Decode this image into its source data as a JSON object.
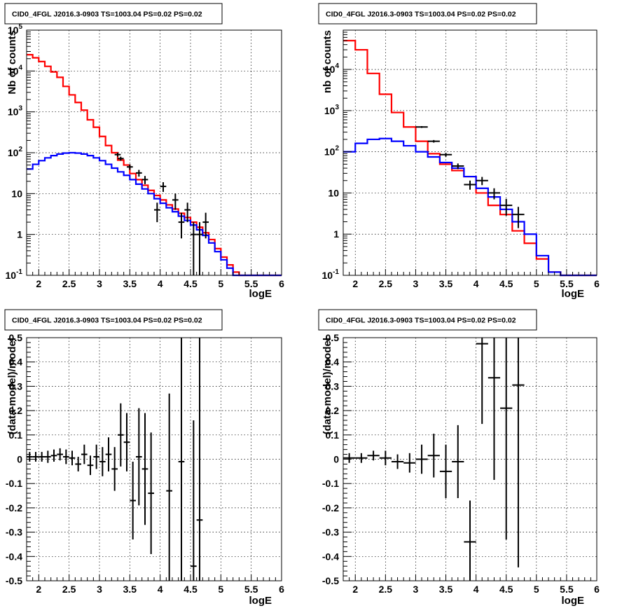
{
  "chart_data": [
    {
      "type": "line",
      "title": "CID0_4FGL J2016.3-0903 TS=1003.04 PS=0.02 PS=0.02",
      "xlabel": "logE",
      "ylabel": "Nb of counts",
      "log_y": true,
      "xlim": [
        1.8,
        6.0
      ],
      "ylim": [
        0.1,
        100000
      ],
      "grid": true,
      "x_ticks": [
        "2",
        "2.5",
        "3",
        "3.5",
        "4",
        "4.5",
        "5",
        "5.5",
        "6"
      ],
      "y_ticks": [
        "10^{-1}",
        "1",
        "10",
        "10^{2}",
        "10^{3}",
        "10^{4}",
        "10^{5}"
      ],
      "series": [
        {
          "color": "#ff0000",
          "bin_edges": [
            1.8,
            1.9,
            2.0,
            2.1,
            2.2,
            2.3,
            2.4,
            2.5,
            2.6,
            2.7,
            2.8,
            2.9,
            3.0,
            3.1,
            3.2,
            3.3,
            3.4,
            3.5,
            3.6,
            3.7,
            3.8,
            3.9,
            4.0,
            4.1,
            4.2,
            4.3,
            4.4,
            4.5,
            4.6,
            4.7,
            4.8,
            4.9,
            5.0,
            5.1,
            5.2,
            5.3,
            5.4,
            5.5,
            5.6,
            5.7,
            5.8,
            5.9,
            6.0
          ],
          "values": [
            25000,
            21000,
            17000,
            13000,
            9500,
            7000,
            4200,
            2600,
            1700,
            1100,
            640,
            420,
            250,
            150,
            100,
            66,
            50,
            31,
            22,
            16,
            12,
            9,
            7,
            5.3,
            4.2,
            3.3,
            2.6,
            2.0,
            1.5,
            1.1,
            0.75,
            0.45,
            0.28,
            0.18,
            0.12,
            0.1,
            0.1,
            0.1,
            0.1,
            0.1,
            0.1,
            0.1
          ]
        },
        {
          "color": "#0000ff",
          "bin_edges": [
            1.8,
            1.9,
            2.0,
            2.1,
            2.2,
            2.3,
            2.4,
            2.5,
            2.6,
            2.7,
            2.8,
            2.9,
            3.0,
            3.1,
            3.2,
            3.3,
            3.4,
            3.5,
            3.6,
            3.7,
            3.8,
            3.9,
            4.0,
            4.1,
            4.2,
            4.3,
            4.4,
            4.5,
            4.6,
            4.7,
            4.8,
            4.9,
            5.0,
            5.1,
            5.2,
            5.3,
            5.4,
            5.5,
            5.6,
            5.7,
            5.8,
            5.9,
            6.0
          ],
          "values": [
            40,
            52,
            64,
            75,
            85,
            93,
            98,
            100,
            98,
            93,
            85,
            75,
            64,
            52,
            42,
            34,
            28,
            22,
            17,
            13,
            10,
            7.5,
            5.8,
            4.5,
            3.6,
            2.8,
            2.2,
            1.7,
            1.3,
            0.95,
            0.62,
            0.38,
            0.24,
            0.15,
            0.1,
            0.1,
            0.1,
            0.1,
            0.1,
            0.1,
            0.1,
            0.1
          ]
        }
      ],
      "points": [
        {
          "x": 3.3,
          "y": 90,
          "yerr": [
            10,
            10
          ],
          "xerr": 0.05
        },
        {
          "x": 3.35,
          "y": 72,
          "yerr": [
            8,
            8
          ],
          "xerr": 0.05
        },
        {
          "x": 3.5,
          "y": 45,
          "yerr": [
            7,
            7
          ],
          "xerr": 0.05
        },
        {
          "x": 3.65,
          "y": 32,
          "yerr": [
            6,
            6
          ],
          "xerr": 0.05
        },
        {
          "x": 3.75,
          "y": 22,
          "yerr": [
            5,
            5
          ],
          "xerr": 0.05
        },
        {
          "x": 3.95,
          "y": 4,
          "yerr": [
            2,
            2
          ],
          "xerr": 0.05
        },
        {
          "x": 4.05,
          "y": 15,
          "yerr": [
            4,
            4
          ],
          "xerr": 0.05
        },
        {
          "x": 4.25,
          "y": 7,
          "yerr": [
            3,
            3
          ],
          "xerr": 0.05
        },
        {
          "x": 4.35,
          "y": 2,
          "yerr": [
            1.2,
            1.4
          ],
          "xerr": 0.05
        },
        {
          "x": 4.45,
          "y": 4,
          "yerr": [
            2,
            2
          ],
          "xerr": 0.05
        },
        {
          "x": 4.55,
          "y": 1,
          "yerr": [
            0.95,
            1.0
          ],
          "xerr": 0.05
        },
        {
          "x": 4.65,
          "y": 1,
          "yerr": [
            0.95,
            1.0
          ],
          "xerr": 0.05
        },
        {
          "x": 4.75,
          "y": 2,
          "yerr": [
            1.2,
            1.4
          ],
          "xerr": 0.05
        }
      ]
    },
    {
      "type": "line",
      "title": "CID0_4FGL J2016.3-0903 TS=1003.04 PS=0.02 PS=0.02",
      "xlabel": "logE",
      "ylabel": "nb of counts",
      "log_y": true,
      "xlim": [
        1.8,
        6.0
      ],
      "ylim": [
        0.1,
        90000
      ],
      "grid": true,
      "x_ticks": [
        "2",
        "2.5",
        "3",
        "3.5",
        "4",
        "4.5",
        "5",
        "5.5",
        "6"
      ],
      "y_ticks": [
        "10^{-1}",
        "1",
        "10",
        "10^{2}",
        "10^{3}",
        "10^{4}"
      ],
      "series": [
        {
          "color": "#ff0000",
          "bin_edges": [
            1.8,
            2.0,
            2.2,
            2.4,
            2.6,
            2.8,
            3.0,
            3.2,
            3.4,
            3.6,
            3.8,
            4.0,
            4.2,
            4.4,
            4.6,
            4.8,
            5.0,
            5.2,
            5.4,
            5.6,
            5.8,
            6.0
          ],
          "values": [
            50000,
            30000,
            8000,
            2500,
            900,
            400,
            180,
            90,
            50,
            35,
            25,
            10,
            5,
            3,
            1.2,
            0.6,
            0.25,
            0.12,
            0.1,
            0.1,
            0.1
          ]
        },
        {
          "color": "#0000ff",
          "bin_edges": [
            1.8,
            2.0,
            2.2,
            2.4,
            2.6,
            2.8,
            3.0,
            3.2,
            3.4,
            3.6,
            3.8,
            4.0,
            4.2,
            4.4,
            4.6,
            4.8,
            5.0,
            5.2,
            5.4,
            5.6,
            5.8,
            6.0
          ],
          "values": [
            100,
            160,
            200,
            210,
            180,
            140,
            100,
            75,
            55,
            40,
            25,
            13,
            8,
            4,
            2,
            1,
            0.3,
            0.12,
            0.1,
            0.1,
            0.1
          ]
        }
      ],
      "points": [
        {
          "x": 3.1,
          "y": 400,
          "yerr": [
            20,
            20
          ],
          "xerr": 0.1
        },
        {
          "x": 3.3,
          "y": 180,
          "yerr": [
            13,
            13
          ],
          "xerr": 0.1
        },
        {
          "x": 3.5,
          "y": 85,
          "yerr": [
            9,
            9
          ],
          "xerr": 0.1
        },
        {
          "x": 3.7,
          "y": 45,
          "yerr": [
            7,
            7
          ],
          "xerr": 0.1
        },
        {
          "x": 3.9,
          "y": 16,
          "yerr": [
            4,
            4
          ],
          "xerr": 0.1
        },
        {
          "x": 4.1,
          "y": 20,
          "yerr": [
            4.5,
            4.5
          ],
          "xerr": 0.1
        },
        {
          "x": 4.3,
          "y": 10,
          "yerr": [
            3,
            3
          ],
          "xerr": 0.1
        },
        {
          "x": 4.5,
          "y": 5,
          "yerr": [
            2.2,
            2.2
          ],
          "xerr": 0.1
        },
        {
          "x": 4.7,
          "y": 3,
          "yerr": [
            1.6,
            1.6
          ],
          "xerr": 0.1
        }
      ]
    },
    {
      "type": "scatter",
      "title": "CID0_4FGL J2016.3-0903 TS=1003.04 PS=0.02 PS=0.02",
      "xlabel": "logE",
      "ylabel": "(data-model)/model",
      "xlim": [
        1.8,
        6.0
      ],
      "ylim": [
        -0.5,
        0.5
      ],
      "grid": true,
      "x_ticks": [
        "2",
        "2.5",
        "3",
        "3.5",
        "4",
        "4.5",
        "5",
        "5.5",
        "6"
      ],
      "y_ticks": [
        "-0.5",
        "-0.4",
        "-0.3",
        "-0.2",
        "-0.1",
        "0",
        "0.1",
        "0.2",
        "0.3",
        "0.4",
        "0.5"
      ],
      "points": [
        {
          "x": 1.85,
          "y": 0.01,
          "yerr": [
            0.02,
            0.02
          ],
          "xerr": 0.05
        },
        {
          "x": 1.95,
          "y": 0.01,
          "yerr": [
            0.02,
            0.02
          ],
          "xerr": 0.05
        },
        {
          "x": 2.05,
          "y": 0.01,
          "yerr": [
            0.02,
            0.02
          ],
          "xerr": 0.05
        },
        {
          "x": 2.15,
          "y": 0.01,
          "yerr": [
            0.025,
            0.025
          ],
          "xerr": 0.05
        },
        {
          "x": 2.25,
          "y": 0.015,
          "yerr": [
            0.025,
            0.025
          ],
          "xerr": 0.05
        },
        {
          "x": 2.35,
          "y": 0.02,
          "yerr": [
            0.025,
            0.025
          ],
          "xerr": 0.05
        },
        {
          "x": 2.45,
          "y": 0.01,
          "yerr": [
            0.03,
            0.03
          ],
          "xerr": 0.05
        },
        {
          "x": 2.55,
          "y": 0.005,
          "yerr": [
            0.03,
            0.03
          ],
          "xerr": 0.05
        },
        {
          "x": 2.65,
          "y": -0.02,
          "yerr": [
            0.03,
            0.03
          ],
          "xerr": 0.05
        },
        {
          "x": 2.75,
          "y": 0.02,
          "yerr": [
            0.04,
            0.04
          ],
          "xerr": 0.05
        },
        {
          "x": 2.85,
          "y": -0.025,
          "yerr": [
            0.04,
            0.04
          ],
          "xerr": 0.05
        },
        {
          "x": 2.95,
          "y": 0.01,
          "yerr": [
            0.05,
            0.05
          ],
          "xerr": 0.05
        },
        {
          "x": 3.05,
          "y": -0.01,
          "yerr": [
            0.06,
            0.06
          ],
          "xerr": 0.05
        },
        {
          "x": 3.15,
          "y": 0.02,
          "yerr": [
            0.07,
            0.07
          ],
          "xerr": 0.05
        },
        {
          "x": 3.25,
          "y": -0.04,
          "yerr": [
            0.09,
            0.09
          ],
          "xerr": 0.05
        },
        {
          "x": 3.35,
          "y": 0.1,
          "yerr": [
            0.13,
            0.13
          ],
          "xerr": 0.05
        },
        {
          "x": 3.45,
          "y": 0.07,
          "yerr": [
            0.12,
            0.12
          ],
          "xerr": 0.05
        },
        {
          "x": 3.55,
          "y": -0.17,
          "yerr": [
            0.16,
            0.16
          ],
          "xerr": 0.05
        },
        {
          "x": 3.65,
          "y": 0.01,
          "yerr": [
            0.2,
            0.2
          ],
          "xerr": 0.05
        },
        {
          "x": 3.75,
          "y": -0.04,
          "yerr": [
            0.23,
            0.23
          ],
          "xerr": 0.05
        },
        {
          "x": 3.85,
          "y": -0.14,
          "yerr": [
            0.25,
            0.25
          ],
          "xerr": 0.05
        },
        {
          "x": 4.15,
          "y": -0.13,
          "yerr": [
            0.4,
            0.4
          ],
          "xerr": 0.05
        },
        {
          "x": 4.35,
          "y": -0.01,
          "yerr": [
            0.55,
            0.55
          ],
          "xerr": 0.05
        },
        {
          "x": 4.55,
          "y": -0.44,
          "yerr": [
            0.6,
            0.6
          ],
          "xerr": 0.05
        },
        {
          "x": 4.65,
          "y": -0.25,
          "yerr": [
            0.8,
            0.8
          ],
          "xerr": 0.05
        }
      ]
    },
    {
      "type": "scatter",
      "title": "CID0_4FGL J2016.3-0903 TS=1003.04 PS=0.02 PS=0.02",
      "xlabel": "logE",
      "ylabel": "(data-model)/model",
      "xlim": [
        1.8,
        6.0
      ],
      "ylim": [
        -0.5,
        0.5
      ],
      "grid": true,
      "x_ticks": [
        "2",
        "2.5",
        "3",
        "3.5",
        "4",
        "4.5",
        "5",
        "5.5",
        "6"
      ],
      "y_ticks": [
        "-0.5",
        "-0.4",
        "-0.3",
        "-0.2",
        "-0.1",
        "0",
        "0.1",
        "0.2",
        "0.3",
        "0.4",
        "0.5"
      ],
      "points": [
        {
          "x": 1.9,
          "y": 0.005,
          "yerr": [
            0.02,
            0.02
          ],
          "xerr": 0.1
        },
        {
          "x": 2.1,
          "y": 0.005,
          "yerr": [
            0.02,
            0.02
          ],
          "xerr": 0.1
        },
        {
          "x": 2.3,
          "y": 0.015,
          "yerr": [
            0.02,
            0.02
          ],
          "xerr": 0.1
        },
        {
          "x": 2.5,
          "y": 0.005,
          "yerr": [
            0.03,
            0.03
          ],
          "xerr": 0.1
        },
        {
          "x": 2.7,
          "y": -0.01,
          "yerr": [
            0.03,
            0.03
          ],
          "xerr": 0.1
        },
        {
          "x": 2.9,
          "y": -0.015,
          "yerr": [
            0.04,
            0.04
          ],
          "xerr": 0.1
        },
        {
          "x": 3.1,
          "y": 0.0,
          "yerr": [
            0.06,
            0.06
          ],
          "xerr": 0.1
        },
        {
          "x": 3.3,
          "y": 0.015,
          "yerr": [
            0.09,
            0.09
          ],
          "xerr": 0.1
        },
        {
          "x": 3.5,
          "y": -0.05,
          "yerr": [
            0.11,
            0.11
          ],
          "xerr": 0.1
        },
        {
          "x": 3.7,
          "y": -0.01,
          "yerr": [
            0.15,
            0.15
          ],
          "xerr": 0.1
        },
        {
          "x": 3.9,
          "y": -0.34,
          "yerr": [
            0.17,
            0.17
          ],
          "xerr": 0.1
        },
        {
          "x": 4.1,
          "y": 0.475,
          "yerr": [
            0.33,
            0.33
          ],
          "xerr": 0.1
        },
        {
          "x": 4.3,
          "y": 0.335,
          "yerr": [
            0.42,
            0.42
          ],
          "xerr": 0.1
        },
        {
          "x": 4.5,
          "y": 0.21,
          "yerr": [
            0.54,
            0.54
          ],
          "xerr": 0.1
        },
        {
          "x": 4.7,
          "y": 0.305,
          "yerr": [
            0.75,
            0.75
          ],
          "xerr": 0.1
        }
      ]
    }
  ]
}
